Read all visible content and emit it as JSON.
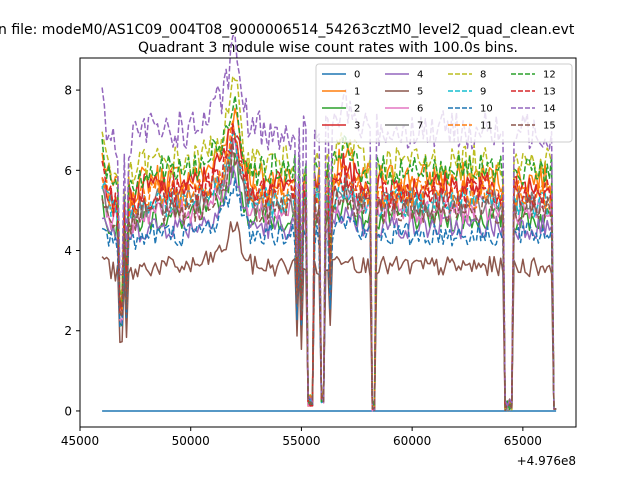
{
  "figure": {
    "suptitle": "n file: modeM0/AS1C09_004T08_9000006514_54263cztM0_level2_quad_clean.evt",
    "title": "Quadrant 3 module wise count rates with 100.0s bins.",
    "offset_label": "+4.976e8"
  },
  "chart_data": {
    "type": "line",
    "title": "Quadrant 3 module wise count rates with 100.0s bins.",
    "xlabel": "",
    "ylabel": "",
    "x_offset": 497600000,
    "xlim": [
      45000,
      67400
    ],
    "ylim": [
      -0.4,
      8.8
    ],
    "xticks": [
      45000,
      50000,
      55000,
      60000,
      65000
    ],
    "xtick_labels": [
      "45000",
      "50000",
      "55000",
      "60000",
      "65000"
    ],
    "yticks": [
      0,
      2,
      4,
      6,
      8
    ],
    "ytick_labels": [
      "0",
      "2",
      "4",
      "6",
      "8"
    ],
    "grid": false,
    "legend_placement": "top-right",
    "legend_columns": 4,
    "x_start": 46000,
    "x_end": 66500,
    "bin_seconds": 100,
    "dropouts": [
      {
        "start": 55300,
        "end": 55550,
        "min": 0.1
      },
      {
        "start": 55850,
        "end": 56050,
        "min": 0.2
      },
      {
        "start": 58150,
        "end": 58300,
        "min": 0.0
      },
      {
        "start": 64150,
        "end": 64550,
        "min": 0.0
      }
    ],
    "series": [
      {
        "name": "0",
        "color": "#1f77b4",
        "dash": false,
        "base": 0.0
      },
      {
        "name": "1",
        "color": "#ff7f0e",
        "dash": false,
        "base": 5.8
      },
      {
        "name": "2",
        "color": "#2ca02c",
        "dash": false,
        "base": 4.8
      },
      {
        "name": "3",
        "color": "#d62728",
        "dash": false,
        "base": 5.6
      },
      {
        "name": "4",
        "color": "#9467bd",
        "dash": false,
        "base": 4.6
      },
      {
        "name": "5",
        "color": "#8c564b",
        "dash": false,
        "base": 3.6
      },
      {
        "name": "6",
        "color": "#e377c2",
        "dash": false,
        "base": 5.0
      },
      {
        "name": "7",
        "color": "#7f7f7f",
        "dash": false,
        "base": 5.2
      },
      {
        "name": "8",
        "color": "#bcbd22",
        "dash": true,
        "base": 6.2
      },
      {
        "name": "9",
        "color": "#17becf",
        "dash": true,
        "base": 5.2
      },
      {
        "name": "10",
        "color": "#1f77b4",
        "dash": true,
        "base": 4.4
      },
      {
        "name": "11",
        "color": "#ff7f0e",
        "dash": true,
        "base": 5.4
      },
      {
        "name": "12",
        "color": "#2ca02c",
        "dash": true,
        "base": 6.0
      },
      {
        "name": "13",
        "color": "#d62728",
        "dash": true,
        "base": 5.4
      },
      {
        "name": "14",
        "color": "#9467bd",
        "dash": true,
        "base": 7.0
      },
      {
        "name": "15",
        "color": "#8c564b",
        "dash": true,
        "base": 5.0
      }
    ]
  }
}
